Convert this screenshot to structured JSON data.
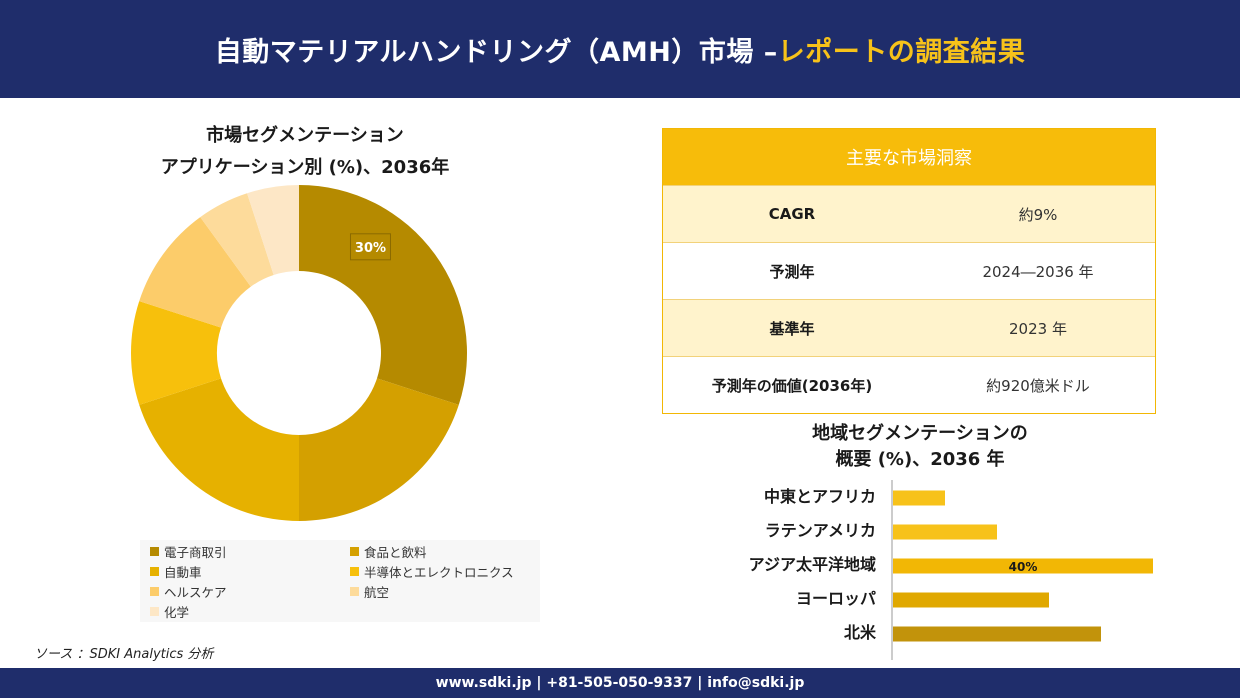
{
  "header": {
    "title_main": "自動マテリアルハンドリング（AMH）市場 –",
    "title_accent": "レポートの調査結果"
  },
  "pie": {
    "title_line1": "市場セグメンテーション",
    "title_line2": "アプリケーション別 (%)、2036年"
  },
  "insights": {
    "header": "主要な市場洞察",
    "rows": [
      {
        "label": "CAGR",
        "value": "約9%"
      },
      {
        "label": "予測年",
        "value": "2024―2036 年"
      },
      {
        "label": "基準年",
        "value": "2023 年"
      },
      {
        "label": "予測年の価値(2036年)",
        "value": "約920億米ドル"
      }
    ]
  },
  "region": {
    "title_line1": "地域セグメンテーションの",
    "title_line2": "概要 (%)、2036 年"
  },
  "source": "ソース ：SDKI Analytics 分析",
  "footer": "www.sdki.jp | +81-505-050-9337 | info@sdki.jp",
  "chart_data": [
    {
      "type": "pie",
      "donut": true,
      "categories": [
        "電子商取引",
        "食品と飲料",
        "自動車",
        "半導体とエレクトロニクス",
        "ヘルスケア",
        "航空",
        "化学"
      ],
      "values": [
        30,
        20,
        20,
        10,
        10,
        5,
        5
      ],
      "colors": [
        "#b58a00",
        "#d4a000",
        "#e6b100",
        "#f7c00c",
        "#fccc6a",
        "#fddb9b",
        "#fde7c6"
      ],
      "data_labels": [
        "30%",
        "",
        "",
        "",
        "",
        "",
        ""
      ],
      "legend_position": "bottom"
    },
    {
      "type": "bar",
      "orientation": "horizontal",
      "categories": [
        "中東とアフリカ",
        "ラテンアメリカ",
        "アジア太平洋地域",
        "ヨーロッパ",
        "北米"
      ],
      "values": [
        8,
        16,
        40,
        24,
        32
      ],
      "colors": [
        "#f7c21a",
        "#f7c21a",
        "#f2b705",
        "#e0a800",
        "#c2930b"
      ],
      "data_labels": [
        "",
        "",
        "40%",
        "",
        ""
      ],
      "xlim": [
        0,
        40
      ]
    }
  ]
}
